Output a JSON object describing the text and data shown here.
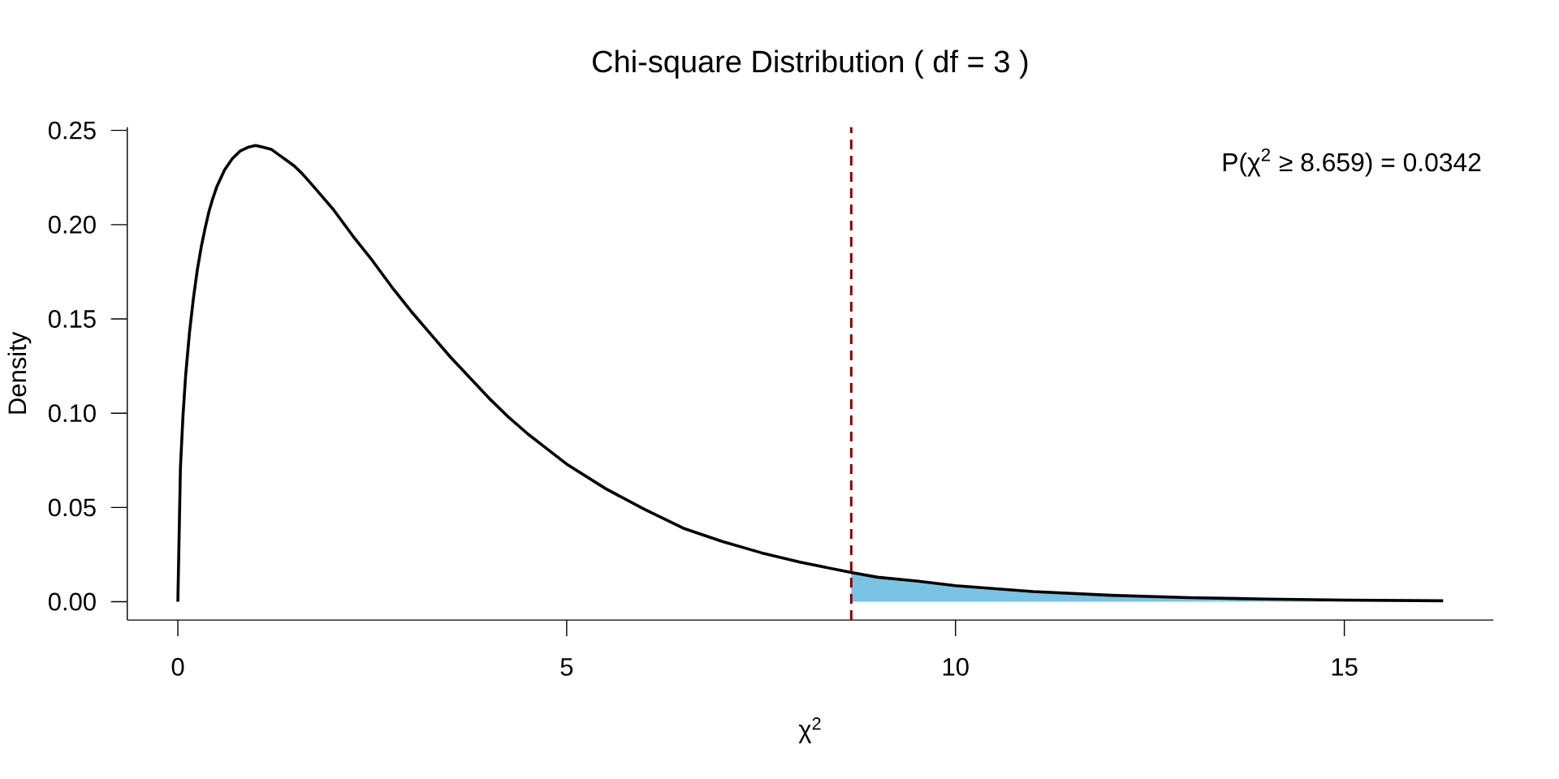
{
  "chart_data": {
    "type": "line",
    "title": "Chi-square Distribution ( df = 3 )",
    "xlabel": "χ$^{2}$",
    "ylabel": "Density",
    "xlim": [
      -0.651,
      16.917
    ],
    "ylim": [
      -0.0097,
      0.2517
    ],
    "xticks": [
      0,
      5,
      10,
      15
    ],
    "yticks": [
      {
        "value": 0,
        "label": "0.00"
      },
      {
        "value": 0.05,
        "label": "0.05"
      },
      {
        "value": 0.1,
        "label": "0.10"
      },
      {
        "value": 0.15,
        "label": "0.15"
      },
      {
        "value": 0.2,
        "label": "0.20"
      },
      {
        "value": 0.25,
        "label": "0.25"
      }
    ],
    "series": [
      {
        "type": "area",
        "color": "#7bc3e4",
        "x": [
          8.659,
          9,
          9.5,
          10,
          11,
          12,
          13,
          14,
          15,
          16.27
        ],
        "values": [
          0.0155,
          0.013,
          0.011,
          0.0085,
          0.0054,
          0.0034,
          0.0022,
          0.0014,
          0.0009,
          0.0005
        ]
      },
      {
        "color": "#000000",
        "x": [
          0,
          0.033,
          0.065,
          0.1,
          0.15,
          0.2,
          0.25,
          0.3,
          0.35,
          0.4,
          0.45,
          0.5,
          0.6,
          0.7,
          0.8,
          0.9,
          1,
          1.1,
          1.2,
          1.3,
          1.4,
          1.5,
          1.6,
          1.75,
          2,
          2.25,
          2.5,
          2.75,
          3,
          3.25,
          3.5,
          3.75,
          4,
          4.25,
          4.5,
          4.75,
          5,
          5.5,
          6,
          6.5,
          7,
          7.5,
          8,
          8.659,
          9,
          9.5,
          10,
          11,
          12,
          13,
          14,
          15,
          16.27
        ],
        "values": [
          0,
          0.071,
          0.098,
          0.12,
          0.143,
          0.161,
          0.176,
          0.188,
          0.198,
          0.207,
          0.214,
          0.22,
          0.229,
          0.235,
          0.239,
          0.241,
          0.242,
          0.241,
          0.24,
          0.237,
          0.234,
          0.231,
          0.227,
          0.22,
          0.208,
          0.194,
          0.181,
          0.167,
          0.154,
          0.142,
          0.13,
          0.119,
          0.108,
          0.098,
          0.089,
          0.081,
          0.073,
          0.06,
          0.049,
          0.039,
          0.032,
          0.026,
          0.021,
          0.0155,
          0.013,
          0.011,
          0.0085,
          0.0054,
          0.0034,
          0.0022,
          0.0014,
          0.0009,
          0.0005
        ]
      }
    ],
    "ref_lines": [
      {
        "axis": "x",
        "value": 8.659,
        "color": "#8b0000",
        "line_style": "dashed"
      }
    ],
    "annotations": [
      "P(χ$^{2}$ ≥ 8.659) = 0.0342"
    ]
  }
}
